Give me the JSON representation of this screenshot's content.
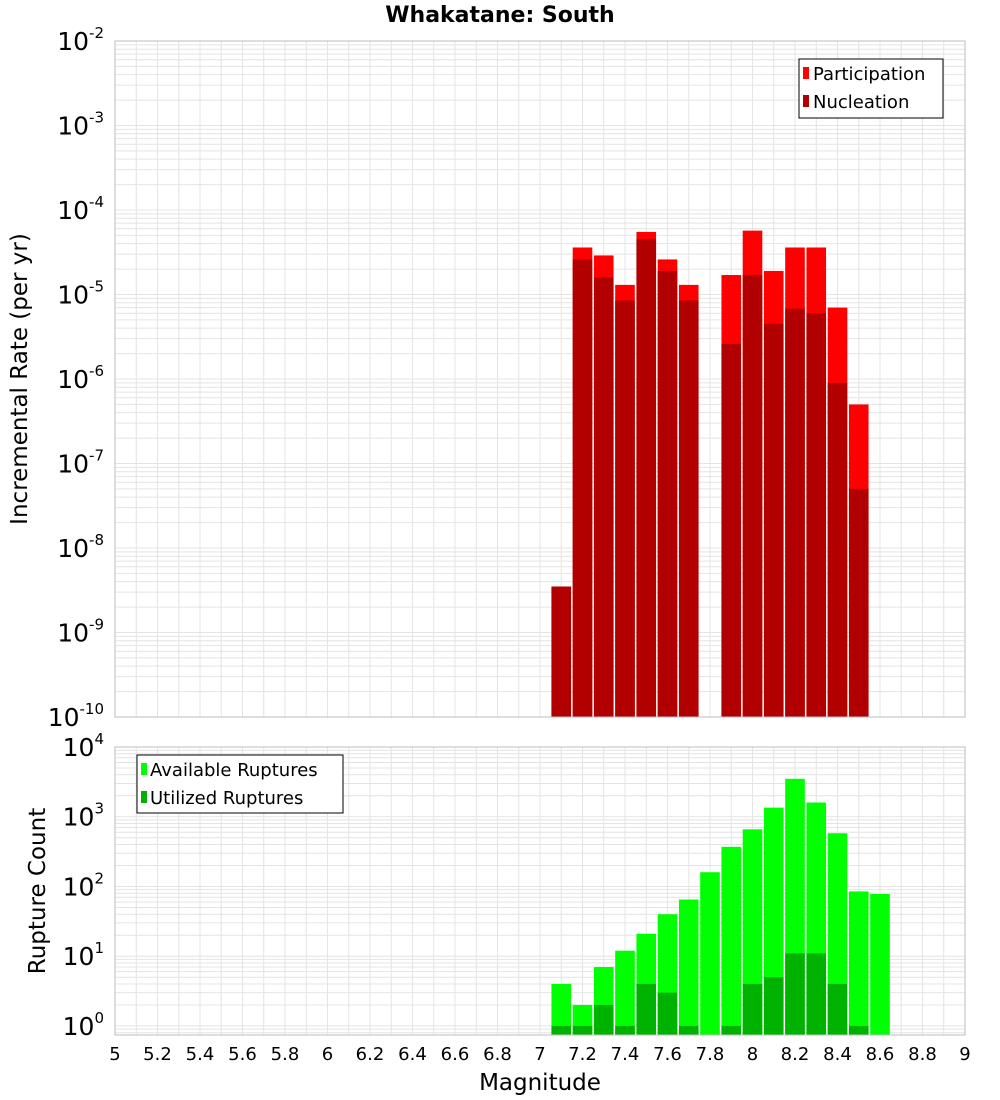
{
  "title": "Whakatane: South",
  "colors": {
    "participation": "#ff0000",
    "nucleation": "#b20000",
    "available": "#00ff00",
    "utilized": "#00b200",
    "grid": "#e4e4e4",
    "frame": "#bdbdbd"
  },
  "chart_data": [
    {
      "type": "bar",
      "name": "rate-panel",
      "title": "Whakatane: South",
      "ylabel": "Incremental Rate (per yr)",
      "xlabel": "",
      "y_scale": "log",
      "ylim_exp": [
        -10,
        -2
      ],
      "xlim": [
        5,
        9
      ],
      "grid": true,
      "legend_position": "top-right",
      "y_ticks": [
        {
          "base": "10",
          "exp": "-10",
          "value": -10
        },
        {
          "base": "10",
          "exp": "-9",
          "value": -9
        },
        {
          "base": "10",
          "exp": "-8",
          "value": -8
        },
        {
          "base": "10",
          "exp": "-7",
          "value": -7
        },
        {
          "base": "10",
          "exp": "-6",
          "value": -6
        },
        {
          "base": "10",
          "exp": "-5",
          "value": -5
        },
        {
          "base": "10",
          "exp": "-4",
          "value": -4
        },
        {
          "base": "10",
          "exp": "-3",
          "value": -3
        },
        {
          "base": "10",
          "exp": "-2",
          "value": -2
        }
      ],
      "series": [
        {
          "name": "Participation",
          "color_key": "participation",
          "points": [
            {
              "x": 7.1,
              "y": 3.5e-09
            },
            {
              "x": 7.2,
              "y": 3.6e-05
            },
            {
              "x": 7.3,
              "y": 2.9e-05
            },
            {
              "x": 7.4,
              "y": 1.3e-05
            },
            {
              "x": 7.5,
              "y": 5.5e-05
            },
            {
              "x": 7.6,
              "y": 2.6e-05
            },
            {
              "x": 7.7,
              "y": 1.3e-05
            },
            {
              "x": 7.9,
              "y": 1.7e-05
            },
            {
              "x": 8.0,
              "y": 5.7e-05
            },
            {
              "x": 8.1,
              "y": 1.9e-05
            },
            {
              "x": 8.2,
              "y": 3.6e-05
            },
            {
              "x": 8.3,
              "y": 3.6e-05
            },
            {
              "x": 8.4,
              "y": 7e-06
            },
            {
              "x": 8.5,
              "y": 5e-07
            }
          ]
        },
        {
          "name": "Nucleation",
          "color_key": "nucleation",
          "points": [
            {
              "x": 7.1,
              "y": 3.5e-09
            },
            {
              "x": 7.2,
              "y": 2.6e-05
            },
            {
              "x": 7.3,
              "y": 1.6e-05
            },
            {
              "x": 7.4,
              "y": 8.5e-06
            },
            {
              "x": 7.5,
              "y": 4.5e-05
            },
            {
              "x": 7.6,
              "y": 1.9e-05
            },
            {
              "x": 7.7,
              "y": 8.5e-06
            },
            {
              "x": 7.9,
              "y": 2.6e-06
            },
            {
              "x": 8.0,
              "y": 1.7e-05
            },
            {
              "x": 8.1,
              "y": 4.5e-06
            },
            {
              "x": 8.2,
              "y": 6.8e-06
            },
            {
              "x": 8.3,
              "y": 6e-06
            },
            {
              "x": 8.4,
              "y": 9e-07
            },
            {
              "x": 8.5,
              "y": 5e-08
            }
          ]
        }
      ]
    },
    {
      "type": "bar",
      "name": "count-panel",
      "ylabel": "Rupture Count",
      "xlabel": "Magnitude",
      "y_scale": "log",
      "ylim_exp": [
        -0.13,
        4
      ],
      "xlim": [
        5,
        9
      ],
      "grid": true,
      "legend_position": "top-left",
      "x_ticks": [
        "5",
        "5.2",
        "5.4",
        "5.6",
        "5.8",
        "6",
        "6.2",
        "6.4",
        "6.6",
        "6.8",
        "7",
        "7.2",
        "7.4",
        "7.6",
        "7.8",
        "8",
        "8.2",
        "8.4",
        "8.6",
        "8.8",
        "9"
      ],
      "y_ticks": [
        {
          "base": "10",
          "exp": "0",
          "value": 0
        },
        {
          "base": "10",
          "exp": "1",
          "value": 1
        },
        {
          "base": "10",
          "exp": "2",
          "value": 2
        },
        {
          "base": "10",
          "exp": "3",
          "value": 3
        },
        {
          "base": "10",
          "exp": "4",
          "value": 4
        }
      ],
      "series": [
        {
          "name": "Available Ruptures",
          "color_key": "available",
          "points": [
            {
              "x": 7.1,
              "y": 4
            },
            {
              "x": 7.2,
              "y": 2
            },
            {
              "x": 7.3,
              "y": 7
            },
            {
              "x": 7.4,
              "y": 12
            },
            {
              "x": 7.5,
              "y": 21
            },
            {
              "x": 7.6,
              "y": 40
            },
            {
              "x": 7.7,
              "y": 65
            },
            {
              "x": 7.8,
              "y": 160
            },
            {
              "x": 7.9,
              "y": 370
            },
            {
              "x": 8.0,
              "y": 660
            },
            {
              "x": 8.1,
              "y": 1350
            },
            {
              "x": 8.2,
              "y": 3500
            },
            {
              "x": 8.3,
              "y": 1600
            },
            {
              "x": 8.4,
              "y": 580
            },
            {
              "x": 8.5,
              "y": 85
            },
            {
              "x": 8.6,
              "y": 78
            }
          ]
        },
        {
          "name": "Utilized Ruptures",
          "color_key": "utilized",
          "points": [
            {
              "x": 7.1,
              "y": 1
            },
            {
              "x": 7.2,
              "y": 1
            },
            {
              "x": 7.3,
              "y": 2
            },
            {
              "x": 7.4,
              "y": 1
            },
            {
              "x": 7.5,
              "y": 4
            },
            {
              "x": 7.6,
              "y": 3
            },
            {
              "x": 7.7,
              "y": 1
            },
            {
              "x": 7.9,
              "y": 1
            },
            {
              "x": 8.0,
              "y": 4
            },
            {
              "x": 8.1,
              "y": 5
            },
            {
              "x": 8.2,
              "y": 11
            },
            {
              "x": 8.3,
              "y": 11
            },
            {
              "x": 8.4,
              "y": 4
            },
            {
              "x": 8.5,
              "y": 1
            }
          ]
        }
      ]
    }
  ]
}
